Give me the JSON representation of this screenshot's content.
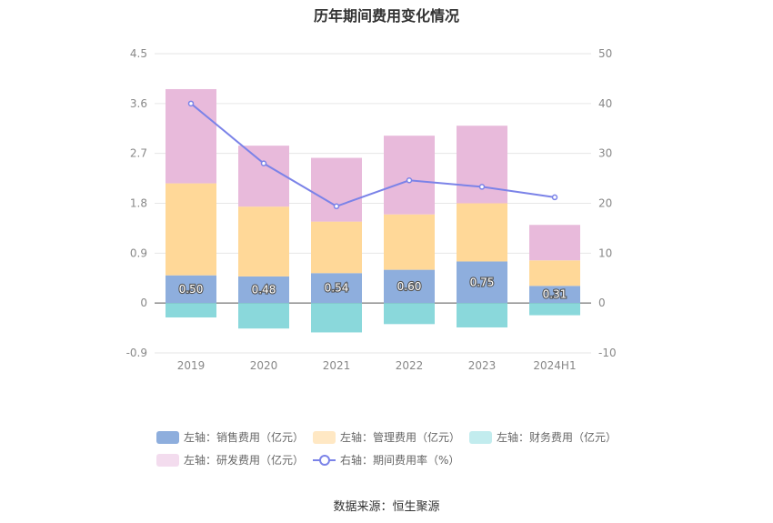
{
  "chart_data": {
    "type": "bar",
    "title": "历年期间费用变化情况",
    "categories": [
      "2019",
      "2020",
      "2021",
      "2022",
      "2023",
      "2024H1"
    ],
    "left_axis": {
      "ticks": [
        "4.5",
        "3.6",
        "2.7",
        "1.8",
        "0.9",
        "0",
        "-0.9"
      ],
      "ylim": [
        -0.9,
        4.5
      ]
    },
    "right_axis": {
      "ticks": [
        "50",
        "40",
        "30",
        "20",
        "10",
        "0",
        "-10"
      ],
      "ylim": [
        -10,
        50
      ]
    },
    "series": [
      {
        "name": "左轴：销售费用（亿元）",
        "axis": "left",
        "kind": "bar",
        "color": "#8eaedd",
        "values": [
          0.5,
          0.48,
          0.54,
          0.6,
          0.75,
          0.31
        ],
        "labels": [
          "0.50",
          "0.48",
          "0.54",
          "0.60",
          "0.75",
          "0.31"
        ]
      },
      {
        "name": "左轴：管理费用（亿元）",
        "axis": "left",
        "kind": "bar",
        "color": "#ffd898",
        "values": [
          1.66,
          1.26,
          0.93,
          1.0,
          1.05,
          0.46
        ]
      },
      {
        "name": "左轴：财务费用（亿元）",
        "axis": "left",
        "kind": "bar",
        "color": "#8ad8db",
        "values": [
          -0.26,
          -0.46,
          -0.53,
          -0.38,
          -0.44,
          -0.22
        ]
      },
      {
        "name": "左轴：研发费用（亿元）",
        "axis": "left",
        "kind": "bar",
        "color": "#e8badb",
        "values": [
          1.7,
          1.1,
          1.15,
          1.42,
          1.4,
          0.64
        ]
      },
      {
        "name": "右轴：期间费用率（%）",
        "axis": "right",
        "kind": "line",
        "color": "#7b83e8",
        "values": [
          40.0,
          28.0,
          19.4,
          24.6,
          23.3,
          21.2
        ]
      }
    ],
    "legend": [
      {
        "label": "左轴：销售费用（亿元）",
        "color": "#8eaedd"
      },
      {
        "label": "左轴：管理费用（亿元）",
        "color": "#ffe8c4"
      },
      {
        "label": "左轴：财务费用（亿元）",
        "color": "#c2ecee"
      },
      {
        "label": "左轴：研发费用（亿元）",
        "color": "#f3dcee"
      },
      {
        "label": "右轴：期间费用率（%）",
        "color": "#7b83e8"
      }
    ],
    "source": "数据来源：恒生聚源"
  }
}
